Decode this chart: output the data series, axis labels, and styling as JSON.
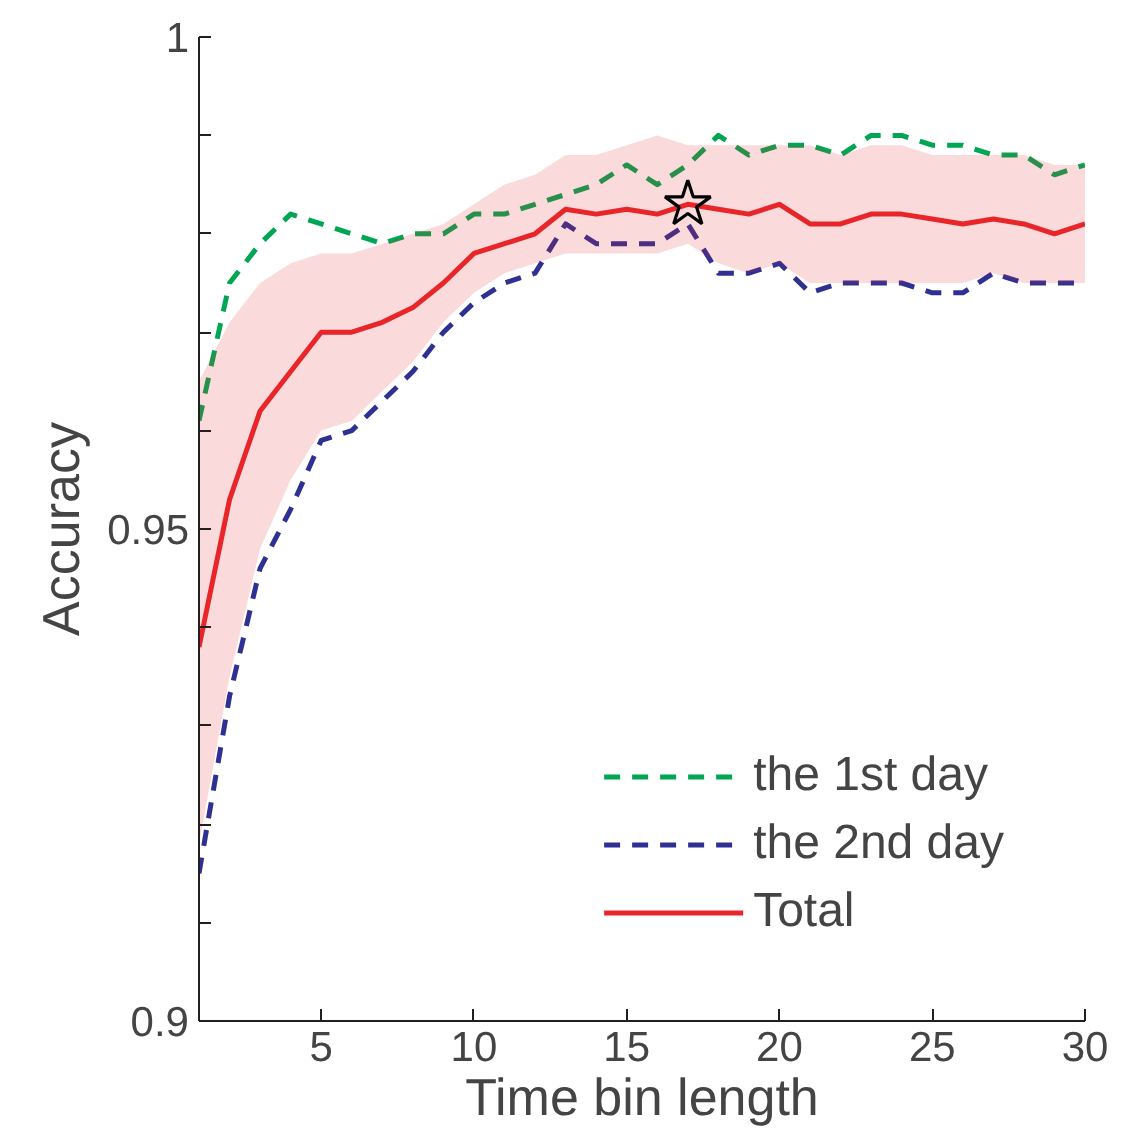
{
  "chart_data": {
    "type": "line",
    "xlabel": "Time bin length",
    "ylabel": "Accuracy",
    "x": [
      1,
      2,
      3,
      4,
      5,
      6,
      7,
      8,
      9,
      10,
      11,
      12,
      13,
      14,
      15,
      16,
      17,
      18,
      19,
      20,
      21,
      22,
      23,
      24,
      25,
      26,
      27,
      28,
      29,
      30
    ],
    "xlim": [
      1,
      30
    ],
    "ylim": [
      0.9,
      1
    ],
    "xticks": [
      5,
      10,
      15,
      20,
      25,
      30
    ],
    "yticks": [
      0.9,
      {
        "value": 0.91,
        "label": null
      },
      {
        "value": 0.92,
        "label": null
      },
      {
        "value": 0.93,
        "label": null
      },
      {
        "value": 0.94,
        "label": null
      },
      0.95,
      {
        "value": 0.96,
        "label": null
      },
      {
        "value": 0.97,
        "label": null
      },
      {
        "value": 0.98,
        "label": null
      },
      {
        "value": 0.99,
        "label": null
      },
      1
    ],
    "grid": false,
    "legend": "bottom right",
    "series": [
      {
        "name": "the 1st day",
        "color": "#00a651",
        "line_style": "dashed",
        "values": [
          0.961,
          0.975,
          0.979,
          0.982,
          0.981,
          0.98,
          0.979,
          0.98,
          0.98,
          0.982,
          0.982,
          0.983,
          0.984,
          0.985,
          0.987,
          0.985,
          0.987,
          0.99,
          0.988,
          0.989,
          0.989,
          0.988,
          0.99,
          0.99,
          0.989,
          0.989,
          0.988,
          0.988,
          0.986,
          0.987
        ]
      },
      {
        "name": "the 2nd day",
        "color": "#2e3192",
        "line_style": "dashed",
        "values": [
          0.915,
          0.933,
          0.946,
          0.952,
          0.959,
          0.96,
          0.963,
          0.966,
          0.97,
          0.973,
          0.975,
          0.976,
          0.981,
          0.979,
          0.979,
          0.979,
          0.981,
          0.976,
          0.976,
          0.977,
          0.974,
          0.975,
          0.975,
          0.975,
          0.974,
          0.974,
          0.976,
          0.975,
          0.975,
          0.975
        ]
      },
      {
        "name": "Total",
        "color": "#e8262a",
        "line_style": "solid",
        "values": [
          0.938,
          0.953,
          0.962,
          0.966,
          0.97,
          0.97,
          0.971,
          0.9725,
          0.975,
          0.978,
          0.979,
          0.98,
          0.9825,
          0.982,
          0.9825,
          0.982,
          0.983,
          0.9825,
          0.982,
          0.983,
          0.981,
          0.981,
          0.982,
          0.982,
          0.9815,
          0.981,
          0.9815,
          0.981,
          0.98,
          0.981
        ],
        "lower": [
          0.918,
          0.935,
          0.948,
          0.955,
          0.96,
          0.961,
          0.964,
          0.967,
          0.971,
          0.974,
          0.976,
          0.977,
          0.978,
          0.978,
          0.978,
          0.978,
          0.979,
          0.977,
          0.976,
          0.977,
          0.975,
          0.975,
          0.975,
          0.975,
          0.975,
          0.975,
          0.976,
          0.975,
          0.975,
          0.975
        ],
        "upper": [
          0.965,
          0.971,
          0.975,
          0.977,
          0.978,
          0.978,
          0.979,
          0.98,
          0.981,
          0.983,
          0.985,
          0.986,
          0.988,
          0.988,
          0.989,
          0.99,
          0.989,
          0.989,
          0.989,
          0.989,
          0.989,
          0.988,
          0.989,
          0.989,
          0.988,
          0.988,
          0.988,
          0.988,
          0.987,
          0.987
        ]
      },
      {
        "type": "scatter",
        "marker": "star",
        "color": "#000000",
        "x": [
          17
        ],
        "values": [
          0.983
        ]
      }
    ]
  }
}
